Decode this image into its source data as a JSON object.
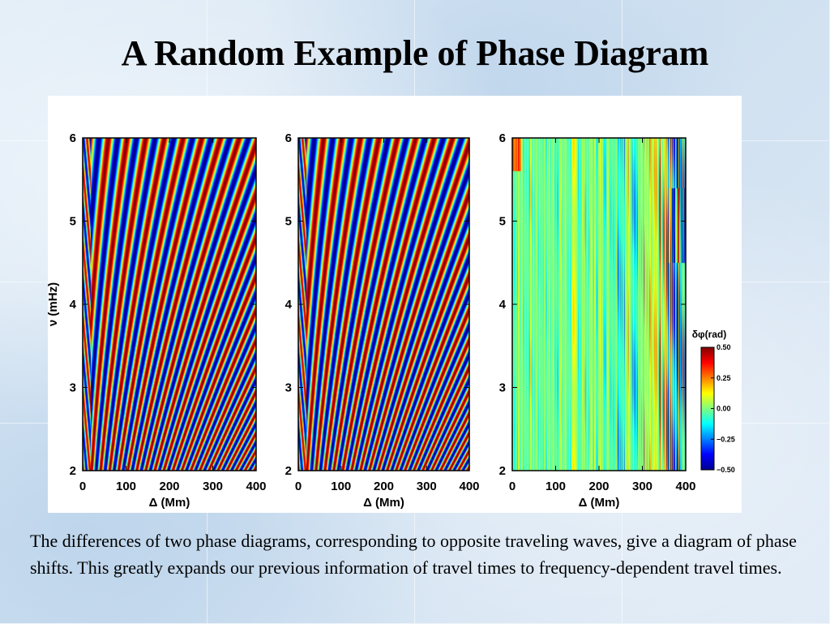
{
  "slide": {
    "title": "A Random Example of Phase Diagram",
    "caption": "The differences of two phase diagrams, corresponding to opposite traveling waves, give a diagram of phase shifts. This greatly expands our previous information of travel times to frequency-dependent travel times."
  },
  "colors": {
    "background": "#dbe8f4",
    "jet": [
      "#00008f",
      "#0000ff",
      "#00ffff",
      "#ffff00",
      "#ff0000",
      "#800000"
    ]
  },
  "chart_data": [
    {
      "type": "heatmap",
      "title": "",
      "xlabel": "Δ (Mm)",
      "ylabel": "ν (mHz)",
      "xlim": [
        0,
        400
      ],
      "ylim": [
        2,
        6
      ],
      "xticks": [
        "0",
        "100",
        "200",
        "300",
        "400"
      ],
      "yticks": [
        "2",
        "3",
        "4",
        "5",
        "6"
      ],
      "colormap": "jet",
      "pattern": "phase diagram: diagonal fringes, tighter at low frequency and large distance"
    },
    {
      "type": "heatmap",
      "title": "",
      "xlabel": "Δ (Mm)",
      "ylabel": "",
      "xlim": [
        0,
        400
      ],
      "ylim": [
        2,
        6
      ],
      "xticks": [
        "0",
        "100",
        "200",
        "300",
        "400"
      ],
      "yticks": [
        "2",
        "3",
        "4",
        "5",
        "6"
      ],
      "colormap": "jet",
      "pattern": "phase diagram: diagonal fringes, tighter at low frequency and large distance"
    },
    {
      "type": "heatmap",
      "title": "",
      "xlabel": "Δ (Mm)",
      "ylabel": "",
      "xlim": [
        0,
        400
      ],
      "ylim": [
        2,
        6
      ],
      "xticks": [
        "0",
        "100",
        "200",
        "300",
        "400"
      ],
      "yticks": [
        "2",
        "3",
        "4",
        "5",
        "6"
      ],
      "colormap": "jet",
      "pattern": "phase-shift diagram: mostly near-zero vertical streaks, stronger variation at 350-400 Mm",
      "colorbar": {
        "label": "δφ(rad)",
        "range": [
          -0.5,
          0.5
        ],
        "ticks": [
          "0.50",
          "0.25",
          "0.00",
          "−0.25",
          "−0.50"
        ]
      }
    }
  ]
}
